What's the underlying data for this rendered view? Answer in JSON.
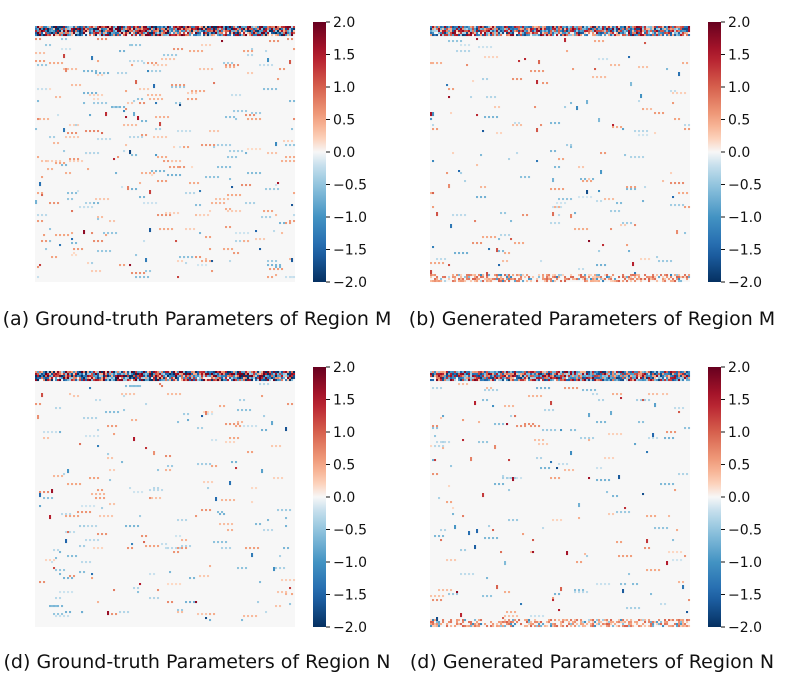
{
  "chart_data": [
    {
      "type": "heatmap",
      "title": "(a) Ground-truth Parameters of Region M",
      "colorbar": {
        "range": [
          -2.0,
          2.0
        ],
        "ticks": [
          "2.0",
          "1.5",
          "1.0",
          "0.5",
          "0.0",
          "−0.5",
          "−1.0",
          "−1.5",
          "−2.0"
        ],
        "colormap": "RdBu_r"
      },
      "pattern": {
        "seed": 11,
        "top_band_strength": 1.9,
        "density": 0.1,
        "sparkle": 0.06,
        "bottom_band": 0.0
      }
    },
    {
      "type": "heatmap",
      "title": "(b) Generated Parameters of Region M",
      "colorbar": {
        "range": [
          -2.0,
          2.0
        ],
        "ticks": [
          "2.0",
          "1.5",
          "1.0",
          "0.5",
          "0.0",
          "−0.5",
          "−1.0",
          "−1.5",
          "−2.0"
        ],
        "colormap": "RdBu_r"
      },
      "pattern": {
        "seed": 23,
        "top_band_strength": 1.6,
        "density": 0.05,
        "sparkle": 0.07,
        "bottom_band": 0.8
      }
    },
    {
      "type": "heatmap",
      "title": "(d) Ground-truth Parameters of Region N",
      "colorbar": {
        "range": [
          -2.0,
          2.0
        ],
        "ticks": [
          "2.0",
          "1.5",
          "1.0",
          "0.5",
          "0.0",
          "−0.5",
          "−1.0",
          "−1.5",
          "−2.0"
        ],
        "colormap": "RdBu_r"
      },
      "pattern": {
        "seed": 37,
        "top_band_strength": 1.9,
        "density": 0.07,
        "sparkle": 0.05,
        "bottom_band": 0.0
      }
    },
    {
      "type": "heatmap",
      "title": "(d) Generated Parameters of Region N",
      "colorbar": {
        "range": [
          -2.0,
          2.0
        ],
        "ticks": [
          "2.0",
          "1.5",
          "1.0",
          "0.5",
          "0.0",
          "−0.5",
          "−1.0",
          "−1.5",
          "−2.0"
        ],
        "colormap": "RdBu_r"
      },
      "pattern": {
        "seed": 53,
        "top_band_strength": 1.6,
        "density": 0.05,
        "sparkle": 0.07,
        "bottom_band": 0.8
      }
    }
  ]
}
